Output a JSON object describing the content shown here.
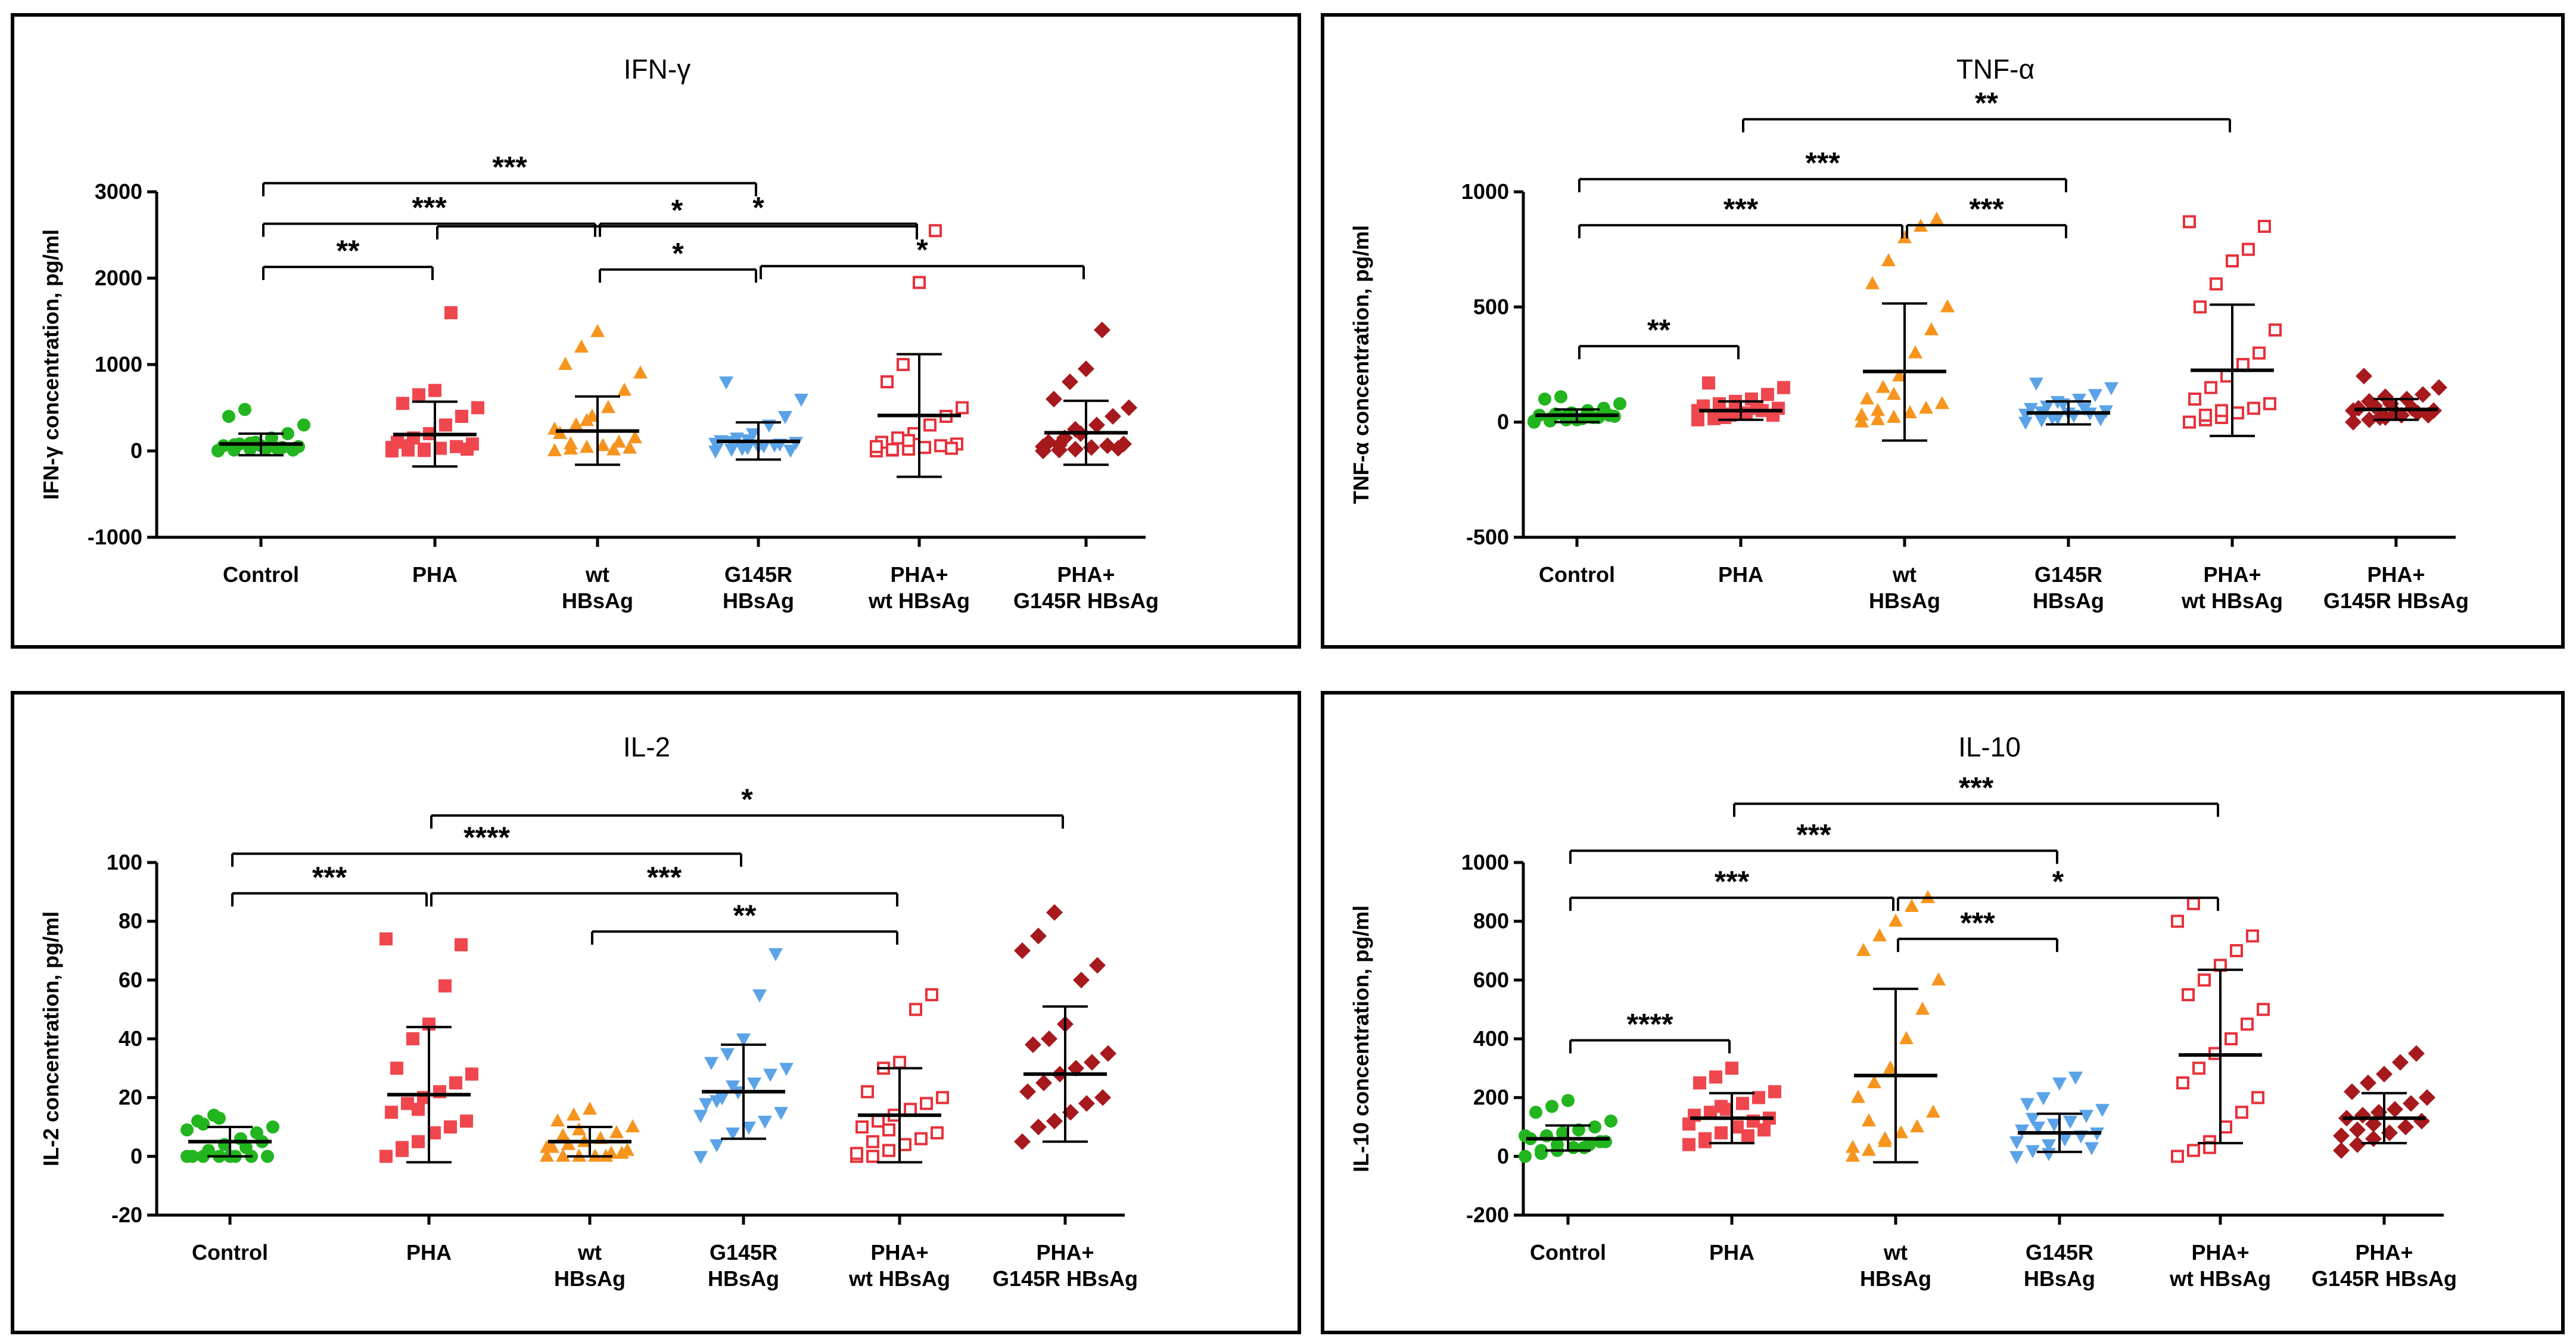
{
  "chart_data": [
    {
      "type": "scatter",
      "title": "IFN-γ",
      "ylabel": "IFN-γ concentration, pg/ml",
      "ylim": [
        -1000,
        3000
      ],
      "yticks": [
        -1000,
        0,
        1000,
        2000,
        3000
      ],
      "categories": [
        {
          "lines": [
            "Control"
          ]
        },
        {
          "lines": [
            "PHA"
          ]
        },
        {
          "lines": [
            "wt",
            "HBsAg"
          ]
        },
        {
          "lines": [
            "G145R",
            "HBsAg"
          ]
        },
        {
          "lines": [
            "PHA+",
            "wt HBsAg"
          ]
        },
        {
          "lines": [
            "PHA+",
            "G145R HBsAg"
          ]
        }
      ],
      "groups": [
        {
          "values": [
            0,
            10,
            20,
            30,
            40,
            50,
            60,
            80,
            100,
            150,
            200,
            300,
            400,
            480,
            60,
            30,
            10,
            5,
            70,
            90
          ],
          "mean": 80,
          "sd_low": -50,
          "sd_high": 200
        },
        {
          "values": [
            0,
            10,
            20,
            30,
            50,
            80,
            100,
            150,
            200,
            300,
            400,
            500,
            550,
            650,
            700,
            1600,
            20,
            40,
            60,
            5
          ],
          "mean": 190,
          "sd_low": -180,
          "sd_high": 570
        },
        {
          "values": [
            0,
            20,
            40,
            60,
            100,
            150,
            200,
            300,
            400,
            500,
            700,
            900,
            1000,
            1200,
            1380,
            10,
            30,
            250,
            80,
            350
          ],
          "mean": 230,
          "sd_low": -160,
          "sd_high": 630
        },
        {
          "values": [
            0,
            20,
            40,
            60,
            80,
            100,
            120,
            150,
            200,
            300,
            400,
            600,
            800,
            30,
            50,
            70,
            10,
            90,
            110,
            130
          ],
          "mean": 110,
          "sd_low": -100,
          "sd_high": 330
        },
        {
          "values": [
            0,
            10,
            20,
            40,
            60,
            80,
            100,
            150,
            200,
            300,
            400,
            500,
            800,
            1000,
            1950,
            2550,
            30,
            50,
            15,
            120
          ],
          "mean": 410,
          "sd_low": -300,
          "sd_high": 1120
        },
        {
          "values": [
            0,
            10,
            20,
            40,
            60,
            80,
            100,
            150,
            200,
            300,
            400,
            500,
            600,
            800,
            950,
            1400,
            30,
            50,
            70,
            250
          ],
          "mean": 210,
          "sd_low": -160,
          "sd_high": 580
        }
      ],
      "brackets": [
        {
          "from": 1,
          "to": 4,
          "y": 2600,
          "label": "*"
        },
        {
          "from": 0,
          "to": 3,
          "y": 3100,
          "label": "***"
        },
        {
          "from": 0,
          "to": 2,
          "y": 2630,
          "label": "***"
        },
        {
          "from": 2,
          "to": 4,
          "y": 2630,
          "label": "*"
        },
        {
          "from": 0,
          "to": 1,
          "y": 2130,
          "label": "**"
        },
        {
          "from": 2,
          "to": 3,
          "y": 2100,
          "label": "*"
        },
        {
          "from": 3,
          "to": 5,
          "y": 2140,
          "label": "*"
        }
      ]
    },
    {
      "type": "scatter",
      "title": "TNF-α",
      "ylabel": "TNF-α concentration, pg/ml",
      "ylim": [
        -500,
        1000
      ],
      "yticks": [
        -500,
        0,
        500,
        1000
      ],
      "categories": [
        {
          "lines": [
            "Control"
          ]
        },
        {
          "lines": [
            "PHA"
          ]
        },
        {
          "lines": [
            "wt",
            "HBsAg"
          ]
        },
        {
          "lines": [
            "G145R",
            "HBsAg"
          ]
        },
        {
          "lines": [
            "PHA+",
            "wt HBsAg"
          ]
        },
        {
          "lines": [
            "PHA+",
            "G145R HBsAg"
          ]
        }
      ],
      "groups": [
        {
          "values": [
            0,
            5,
            10,
            15,
            20,
            25,
            30,
            35,
            40,
            50,
            60,
            80,
            100,
            110,
            10,
            20,
            30,
            5,
            15,
            25
          ],
          "mean": 30,
          "sd_low": 0,
          "sd_high": 55
        },
        {
          "values": [
            10,
            20,
            30,
            40,
            50,
            60,
            70,
            80,
            90,
            100,
            120,
            150,
            170,
            20,
            40,
            60,
            30,
            50,
            15,
            35
          ],
          "mean": 50,
          "sd_low": 10,
          "sd_high": 90
        },
        {
          "values": [
            0,
            10,
            20,
            40,
            60,
            80,
            100,
            150,
            200,
            300,
            400,
            500,
            600,
            700,
            800,
            850,
            880,
            30,
            50,
            120
          ],
          "mean": 220,
          "sd_low": -80,
          "sd_high": 515
        },
        {
          "values": [
            0,
            10,
            20,
            30,
            40,
            50,
            60,
            70,
            80,
            100,
            120,
            150,
            170,
            20,
            40,
            60,
            15,
            35,
            45,
            90
          ],
          "mean": 40,
          "sd_low": -10,
          "sd_high": 90
        },
        {
          "values": [
            0,
            10,
            20,
            40,
            60,
            80,
            100,
            150,
            200,
            250,
            300,
            400,
            500,
            600,
            700,
            750,
            850,
            870,
            30,
            50
          ],
          "mean": 225,
          "sd_low": -60,
          "sd_high": 510
        },
        {
          "values": [
            0,
            10,
            20,
            30,
            40,
            50,
            60,
            70,
            80,
            100,
            120,
            150,
            200,
            20,
            40,
            60,
            30,
            50,
            90,
            110
          ],
          "mean": 55,
          "sd_low": 10,
          "sd_high": 100
        }
      ],
      "brackets": [
        {
          "from": 1,
          "to": 4,
          "y": 1315,
          "label": "**"
        },
        {
          "from": 0,
          "to": 3,
          "y": 1055,
          "label": "***"
        },
        {
          "from": 0,
          "to": 2,
          "y": 855,
          "label": "***"
        },
        {
          "from": 2,
          "to": 3,
          "y": 855,
          "label": "***"
        },
        {
          "from": 0,
          "to": 1,
          "y": 330,
          "label": "**"
        }
      ]
    },
    {
      "type": "scatter",
      "title": "IL-2",
      "ylabel": "IL-2 concentration, pg/ml",
      "ylim": [
        -20,
        100
      ],
      "yticks": [
        -20,
        0,
        20,
        40,
        60,
        80,
        100
      ],
      "categories": [
        {
          "lines": [
            "Control"
          ]
        },
        {
          "lines": [
            "PHA"
          ]
        },
        {
          "lines": [
            "wt",
            "HBsAg"
          ]
        },
        {
          "lines": [
            "G145R",
            "HBsAg"
          ]
        },
        {
          "lines": [
            "PHA+",
            "wt HBsAg"
          ]
        },
        {
          "lines": [
            "PHA+",
            "G145R HBsAg"
          ]
        }
      ],
      "groups": [
        {
          "values": [
            0,
            0,
            0,
            0,
            0,
            0,
            0,
            2,
            4,
            6,
            8,
            10,
            12,
            14,
            0,
            3,
            5,
            9,
            11,
            13
          ],
          "mean": 5,
          "sd_low": 0,
          "sd_high": 10
        },
        {
          "values": [
            0,
            2,
            5,
            8,
            10,
            12,
            15,
            18,
            20,
            22,
            25,
            28,
            30,
            40,
            45,
            58,
            72,
            74,
            3,
            16
          ],
          "mean": 21,
          "sd_low": -2,
          "sd_high": 44
        },
        {
          "values": [
            0,
            0,
            0,
            0,
            1,
            2,
            3,
            4,
            5,
            6,
            8,
            10,
            12,
            14,
            16,
            0,
            1,
            3,
            7,
            9
          ],
          "mean": 5,
          "sd_low": 0,
          "sd_high": 10
        },
        {
          "values": [
            0,
            4,
            8,
            10,
            12,
            15,
            18,
            20,
            22,
            25,
            28,
            30,
            32,
            35,
            40,
            55,
            69,
            14,
            19,
            24
          ],
          "mean": 22,
          "sd_low": 6,
          "sd_high": 38
        },
        {
          "values": [
            0,
            0,
            2,
            4,
            6,
            8,
            10,
            12,
            14,
            16,
            18,
            20,
            22,
            30,
            32,
            50,
            55,
            1,
            5,
            9
          ],
          "mean": 14,
          "sd_low": -2,
          "sd_high": 30
        },
        {
          "values": [
            5,
            10,
            12,
            15,
            18,
            20,
            22,
            25,
            28,
            30,
            32,
            35,
            38,
            40,
            45,
            60,
            65,
            70,
            75,
            83
          ],
          "mean": 28,
          "sd_low": 5,
          "sd_high": 51
        }
      ],
      "brackets": [
        {
          "from": 1,
          "to": 5,
          "y": 116,
          "label": "*"
        },
        {
          "from": 0,
          "to": 3,
          "y": 103,
          "label": "****"
        },
        {
          "from": 0,
          "to": 1,
          "y": 89.5,
          "label": "***"
        },
        {
          "from": 1,
          "to": 4,
          "y": 89.5,
          "label": "***"
        },
        {
          "from": 2,
          "to": 4,
          "y": 76.5,
          "label": "**"
        }
      ]
    },
    {
      "type": "scatter",
      "title": "IL-10",
      "ylabel": "IL-10 concentration, pg/ml",
      "ylim": [
        -200,
        1000
      ],
      "yticks": [
        -200,
        0,
        200,
        400,
        600,
        800,
        1000
      ],
      "categories": [
        {
          "lines": [
            "Control"
          ]
        },
        {
          "lines": [
            "PHA"
          ]
        },
        {
          "lines": [
            "wt",
            "HBsAg"
          ]
        },
        {
          "lines": [
            "G145R",
            "HBsAg"
          ]
        },
        {
          "lines": [
            "PHA+",
            "wt HBsAg"
          ]
        },
        {
          "lines": [
            "PHA+",
            "G145R HBsAg"
          ]
        }
      ],
      "groups": [
        {
          "values": [
            0,
            10,
            20,
            30,
            40,
            50,
            60,
            70,
            80,
            90,
            100,
            120,
            150,
            170,
            190,
            30,
            50,
            70,
            20,
            40
          ],
          "mean": 60,
          "sd_low": 20,
          "sd_high": 105
        },
        {
          "values": [
            40,
            60,
            80,
            100,
            120,
            130,
            140,
            150,
            160,
            180,
            200,
            220,
            250,
            270,
            300,
            70,
            90,
            110,
            50,
            170
          ],
          "mean": 130,
          "sd_low": 45,
          "sd_high": 215
        },
        {
          "values": [
            0,
            20,
            50,
            80,
            100,
            150,
            200,
            250,
            300,
            400,
            500,
            600,
            700,
            750,
            800,
            850,
            880,
            30,
            120,
            60
          ],
          "mean": 275,
          "sd_low": -20,
          "sd_high": 570
        },
        {
          "values": [
            0,
            20,
            40,
            60,
            70,
            80,
            90,
            100,
            110,
            120,
            140,
            160,
            180,
            200,
            250,
            270,
            30,
            50,
            130,
            10
          ],
          "mean": 80,
          "sd_low": 15,
          "sd_high": 145
        },
        {
          "values": [
            0,
            20,
            50,
            100,
            150,
            200,
            250,
            300,
            350,
            400,
            450,
            500,
            550,
            600,
            650,
            700,
            750,
            800,
            860,
            30
          ],
          "mean": 345,
          "sd_low": 45,
          "sd_high": 635
        },
        {
          "values": [
            20,
            40,
            60,
            80,
            100,
            120,
            130,
            140,
            150,
            160,
            180,
            200,
            220,
            250,
            280,
            320,
            350,
            70,
            90,
            110
          ],
          "mean": 130,
          "sd_low": 45,
          "sd_high": 215
        }
      ],
      "brackets": [
        {
          "from": 1,
          "to": 4,
          "y": 1200,
          "label": "***"
        },
        {
          "from": 0,
          "to": 3,
          "y": 1040,
          "label": "***"
        },
        {
          "from": 0,
          "to": 2,
          "y": 880,
          "label": "***"
        },
        {
          "from": 2,
          "to": 4,
          "y": 880,
          "label": "*"
        },
        {
          "from": 2,
          "to": 3,
          "y": 740,
          "label": "***"
        },
        {
          "from": 0,
          "to": 1,
          "y": 395,
          "label": "****"
        }
      ]
    }
  ],
  "series_style": [
    {
      "color": "#22b51f",
      "marker": "circle"
    },
    {
      "color": "#f0474f",
      "marker": "square"
    },
    {
      "color": "#f7941d",
      "marker": "triangle-up"
    },
    {
      "color": "#5aa3e8",
      "marker": "triangle-down"
    },
    {
      "color": "#e8313b",
      "marker": "square-open"
    },
    {
      "color": "#a6191d",
      "marker": "diamond"
    }
  ]
}
